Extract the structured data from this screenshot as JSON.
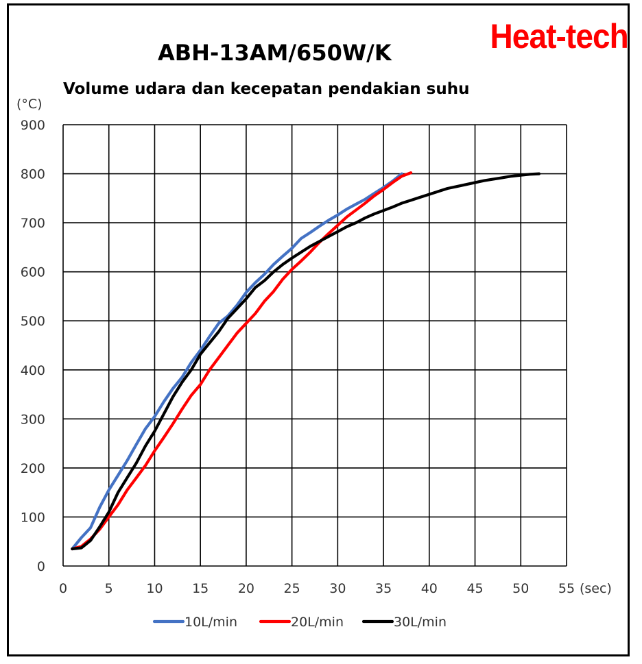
{
  "brand": "Heat-tech",
  "chart_data": {
    "type": "line",
    "title": "ABH-13AM/650W/K",
    "subtitle": "Volume udara dan kecepatan pendakian suhu",
    "ylabel": "(°C)",
    "xlabel": "(sec)",
    "xlim": [
      0,
      55
    ],
    "ylim": [
      0,
      900
    ],
    "xticks": [
      "0",
      "5",
      "10",
      "15",
      "20",
      "25",
      "30",
      "35",
      "40",
      "45",
      "50",
      "55"
    ],
    "yticks": [
      "0",
      "100",
      "200",
      "300",
      "400",
      "500",
      "600",
      "700",
      "800",
      "900"
    ],
    "grid": true,
    "legend_position": "bottom",
    "series": [
      {
        "name": "10L/min",
        "color": "#4472c4",
        "x": [
          1,
          2,
          3,
          4,
          5,
          6,
          7,
          8,
          9,
          10,
          11,
          12,
          13,
          14,
          15,
          16,
          17,
          18,
          19,
          20,
          21,
          22,
          23,
          24,
          25,
          26,
          27,
          28,
          29,
          30,
          31,
          32,
          33,
          34,
          35,
          36,
          37
        ],
        "y": [
          35,
          58,
          78,
          120,
          155,
          185,
          215,
          248,
          280,
          305,
          335,
          362,
          385,
          415,
          440,
          468,
          495,
          510,
          532,
          558,
          578,
          595,
          615,
          632,
          648,
          668,
          680,
          693,
          705,
          716,
          728,
          738,
          748,
          760,
          772,
          785,
          800
        ]
      },
      {
        "name": "20L/min",
        "color": "#ff0000",
        "x": [
          1,
          2,
          3,
          4,
          5,
          6,
          7,
          8,
          9,
          10,
          11,
          12,
          13,
          14,
          15,
          16,
          17,
          18,
          19,
          20,
          21,
          22,
          23,
          24,
          25,
          26,
          27,
          28,
          29,
          30,
          31,
          32,
          33,
          34,
          35,
          36,
          37,
          38
        ],
        "y": [
          35,
          40,
          55,
          75,
          100,
          125,
          155,
          180,
          205,
          235,
          262,
          290,
          320,
          348,
          370,
          400,
          425,
          450,
          475,
          495,
          515,
          540,
          560,
          585,
          605,
          622,
          640,
          660,
          678,
          695,
          712,
          726,
          740,
          755,
          768,
          782,
          795,
          802
        ]
      },
      {
        "name": "30L/min",
        "color": "#000000",
        "x": [
          1,
          2,
          3,
          4,
          5,
          6,
          7,
          8,
          9,
          10,
          11,
          12,
          13,
          14,
          15,
          16,
          17,
          18,
          19,
          20,
          21,
          22,
          23,
          24,
          25,
          26,
          27,
          28,
          29,
          30,
          31,
          32,
          33,
          34,
          35,
          36,
          37,
          38,
          39,
          40,
          41,
          42,
          43,
          44,
          45,
          46,
          47,
          48,
          49,
          50,
          51,
          52
        ],
        "y": [
          35,
          37,
          52,
          80,
          110,
          150,
          180,
          210,
          245,
          275,
          310,
          345,
          375,
          400,
          432,
          455,
          478,
          505,
          525,
          545,
          568,
          582,
          600,
          615,
          628,
          640,
          652,
          662,
          672,
          682,
          692,
          700,
          710,
          718,
          725,
          732,
          740,
          746,
          752,
          758,
          764,
          770,
          774,
          778,
          782,
          786,
          789,
          792,
          795,
          797,
          799,
          800
        ]
      }
    ]
  }
}
